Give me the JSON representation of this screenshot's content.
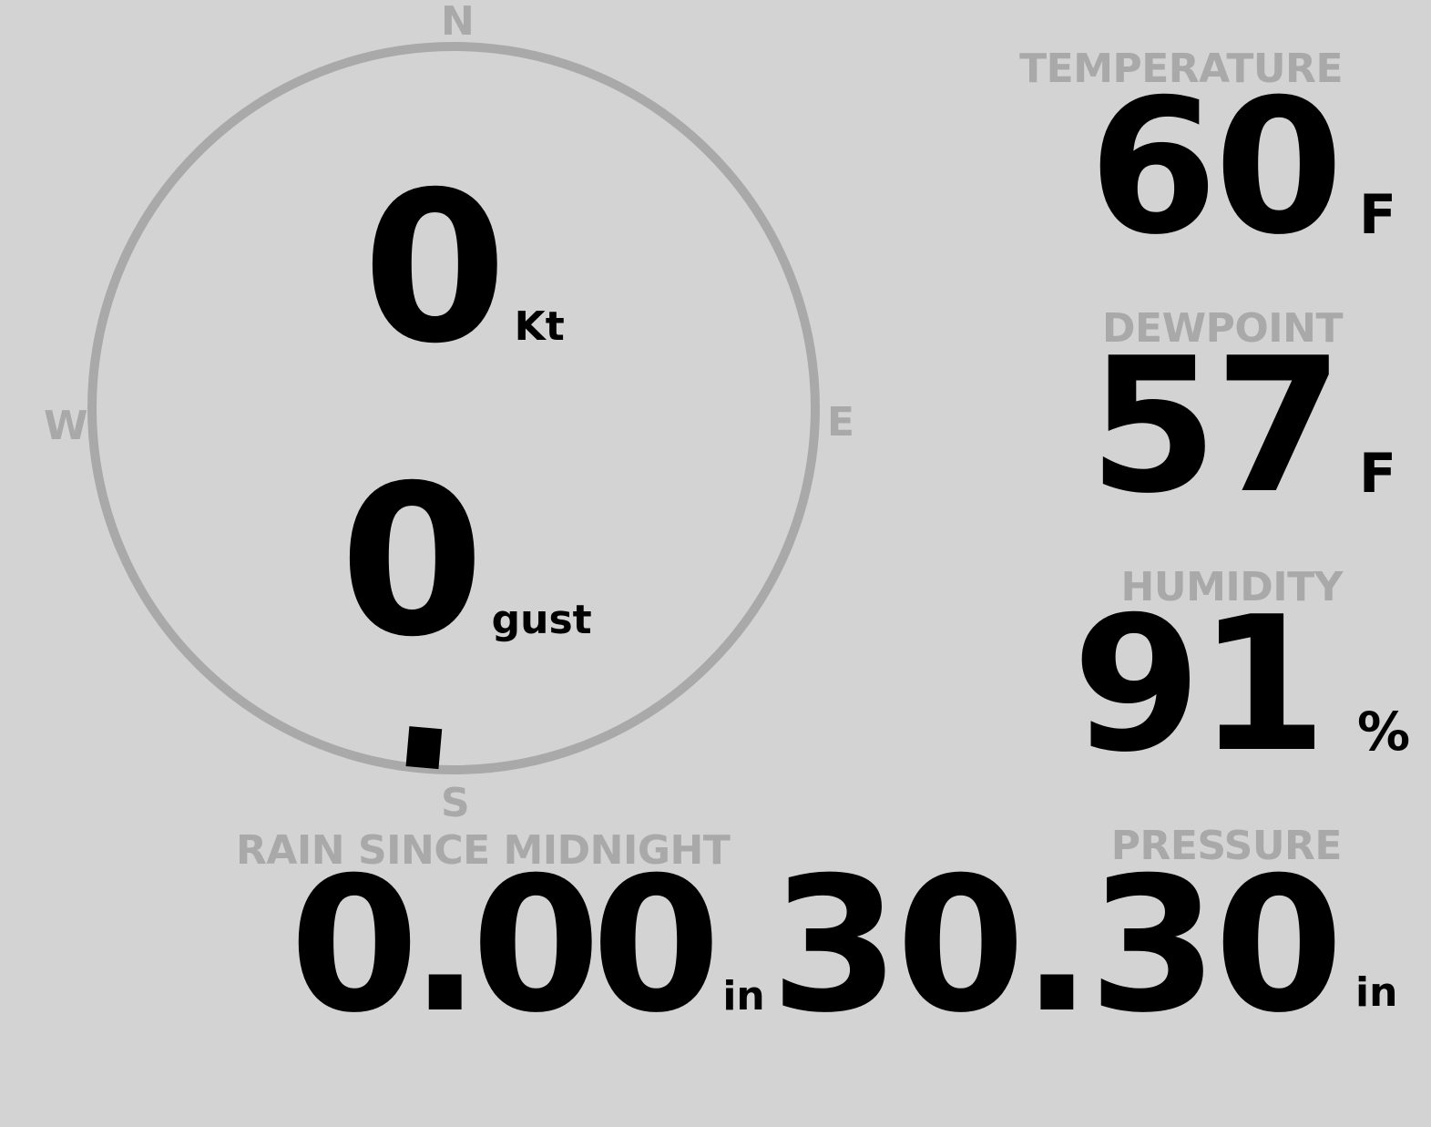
{
  "colors": {
    "background": "#d3d3d3",
    "label": "#a9a9a9",
    "value": "#000000",
    "compass_ring": "#a9a9a9"
  },
  "compass": {
    "north": "N",
    "east": "E",
    "south": "S",
    "west": "W",
    "wind_direction_deg": 185,
    "wind_speed": "0",
    "wind_speed_unit": "Kt",
    "gust": "0",
    "gust_unit": "gust"
  },
  "temperature": {
    "label": "TEMPERATURE",
    "value": "60",
    "unit": "F"
  },
  "dewpoint": {
    "label": "DEWPOINT",
    "value": "57",
    "unit": "F"
  },
  "humidity": {
    "label": "HUMIDITY",
    "value": "91",
    "unit": "%"
  },
  "rain": {
    "label": "RAIN SINCE MIDNIGHT",
    "value": "0.00",
    "unit": "in"
  },
  "pressure": {
    "label": "PRESSURE",
    "value": "30.30",
    "unit": "in"
  }
}
